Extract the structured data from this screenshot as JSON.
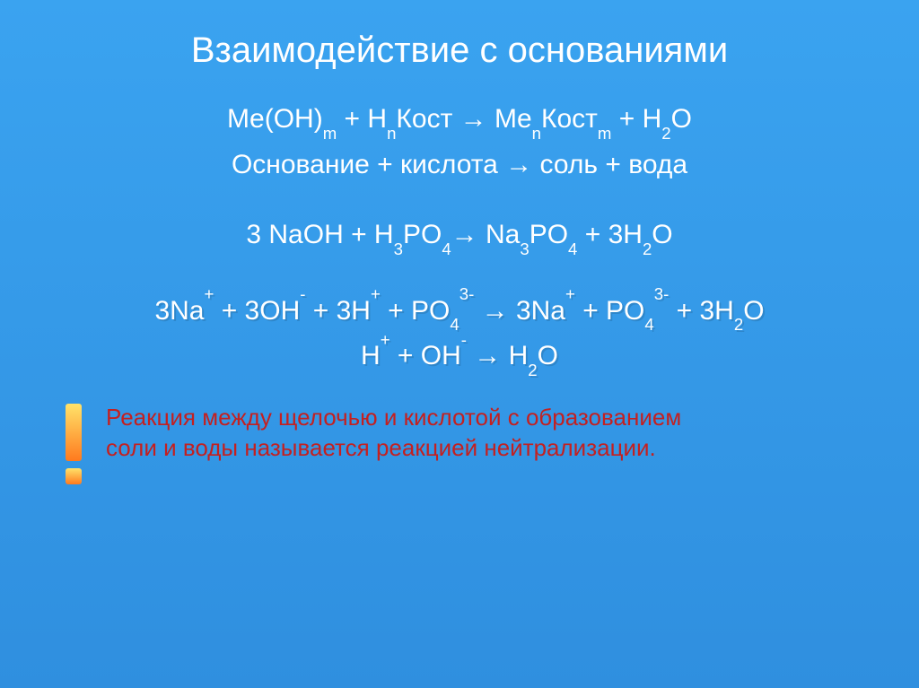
{
  "slide": {
    "background_gradient": [
      "#3aa3f0",
      "#2f8fdf"
    ],
    "text_color": "#ffffff",
    "title": {
      "text": "Взаимодействие с основаниями",
      "fontsize": 40
    },
    "lines": [
      {
        "id": "generic-ionic",
        "fontsize": 30,
        "gap": "sm",
        "shadow": false,
        "segments": [
          "Me(OH)",
          {
            "sub": "m"
          },
          " + H",
          {
            "sub": "n"
          },
          "Кост → Me",
          {
            "sub": "n"
          },
          "Кост",
          {
            "sub": "m"
          },
          " + H",
          {
            "sub": "2"
          },
          "O"
        ]
      },
      {
        "id": "generic-words",
        "fontsize": 30,
        "gap": "md",
        "shadow": false,
        "segments": [
          "Основание + кислота → соль + вода"
        ]
      },
      {
        "id": "molecular-eq",
        "fontsize": 30,
        "gap": "lg",
        "shadow": false,
        "segments": [
          "3 NaOH + H",
          {
            "sub": "3"
          },
          "PO",
          {
            "sub": "4"
          },
          "→ Na",
          {
            "sub": "3"
          },
          "PO",
          {
            "sub": "4"
          },
          " + 3H",
          {
            "sub": "2"
          },
          "O"
        ]
      },
      {
        "id": "full-ionic-eq",
        "fontsize": 30,
        "gap": "sm",
        "shadow": true,
        "segments": [
          "3Na",
          {
            "sup": "+"
          },
          " + 3OH",
          {
            "sup": "-"
          },
          " + 3H",
          {
            "sup": "+"
          },
          " + PO",
          {
            "sub": "4"
          },
          {
            "sup": "3-"
          },
          " → 3Na",
          {
            "sup": "+"
          },
          " + PO",
          {
            "sub": "4"
          },
          {
            "sup": "3-"
          },
          " + 3H",
          {
            "sub": "2"
          },
          "O"
        ]
      },
      {
        "id": "net-ionic-eq",
        "fontsize": 30,
        "gap": "sm",
        "shadow": true,
        "segments": [
          "H",
          {
            "sup": "+"
          },
          " + OH",
          {
            "sup": "-"
          },
          " → H",
          {
            "sub": "2"
          },
          "O"
        ]
      }
    ],
    "footer": {
      "icon": {
        "name": "exclamation-icon",
        "gradient": [
          "#ffe36a",
          "#ff7a1e"
        ],
        "width": 36,
        "height": 90
      },
      "text_color": "#c42020",
      "fontsize": 26,
      "line1": "Реакция между щелочью и кислотой с образованием",
      "line2": "соли и воды называется реакцией нейтрализации."
    }
  }
}
